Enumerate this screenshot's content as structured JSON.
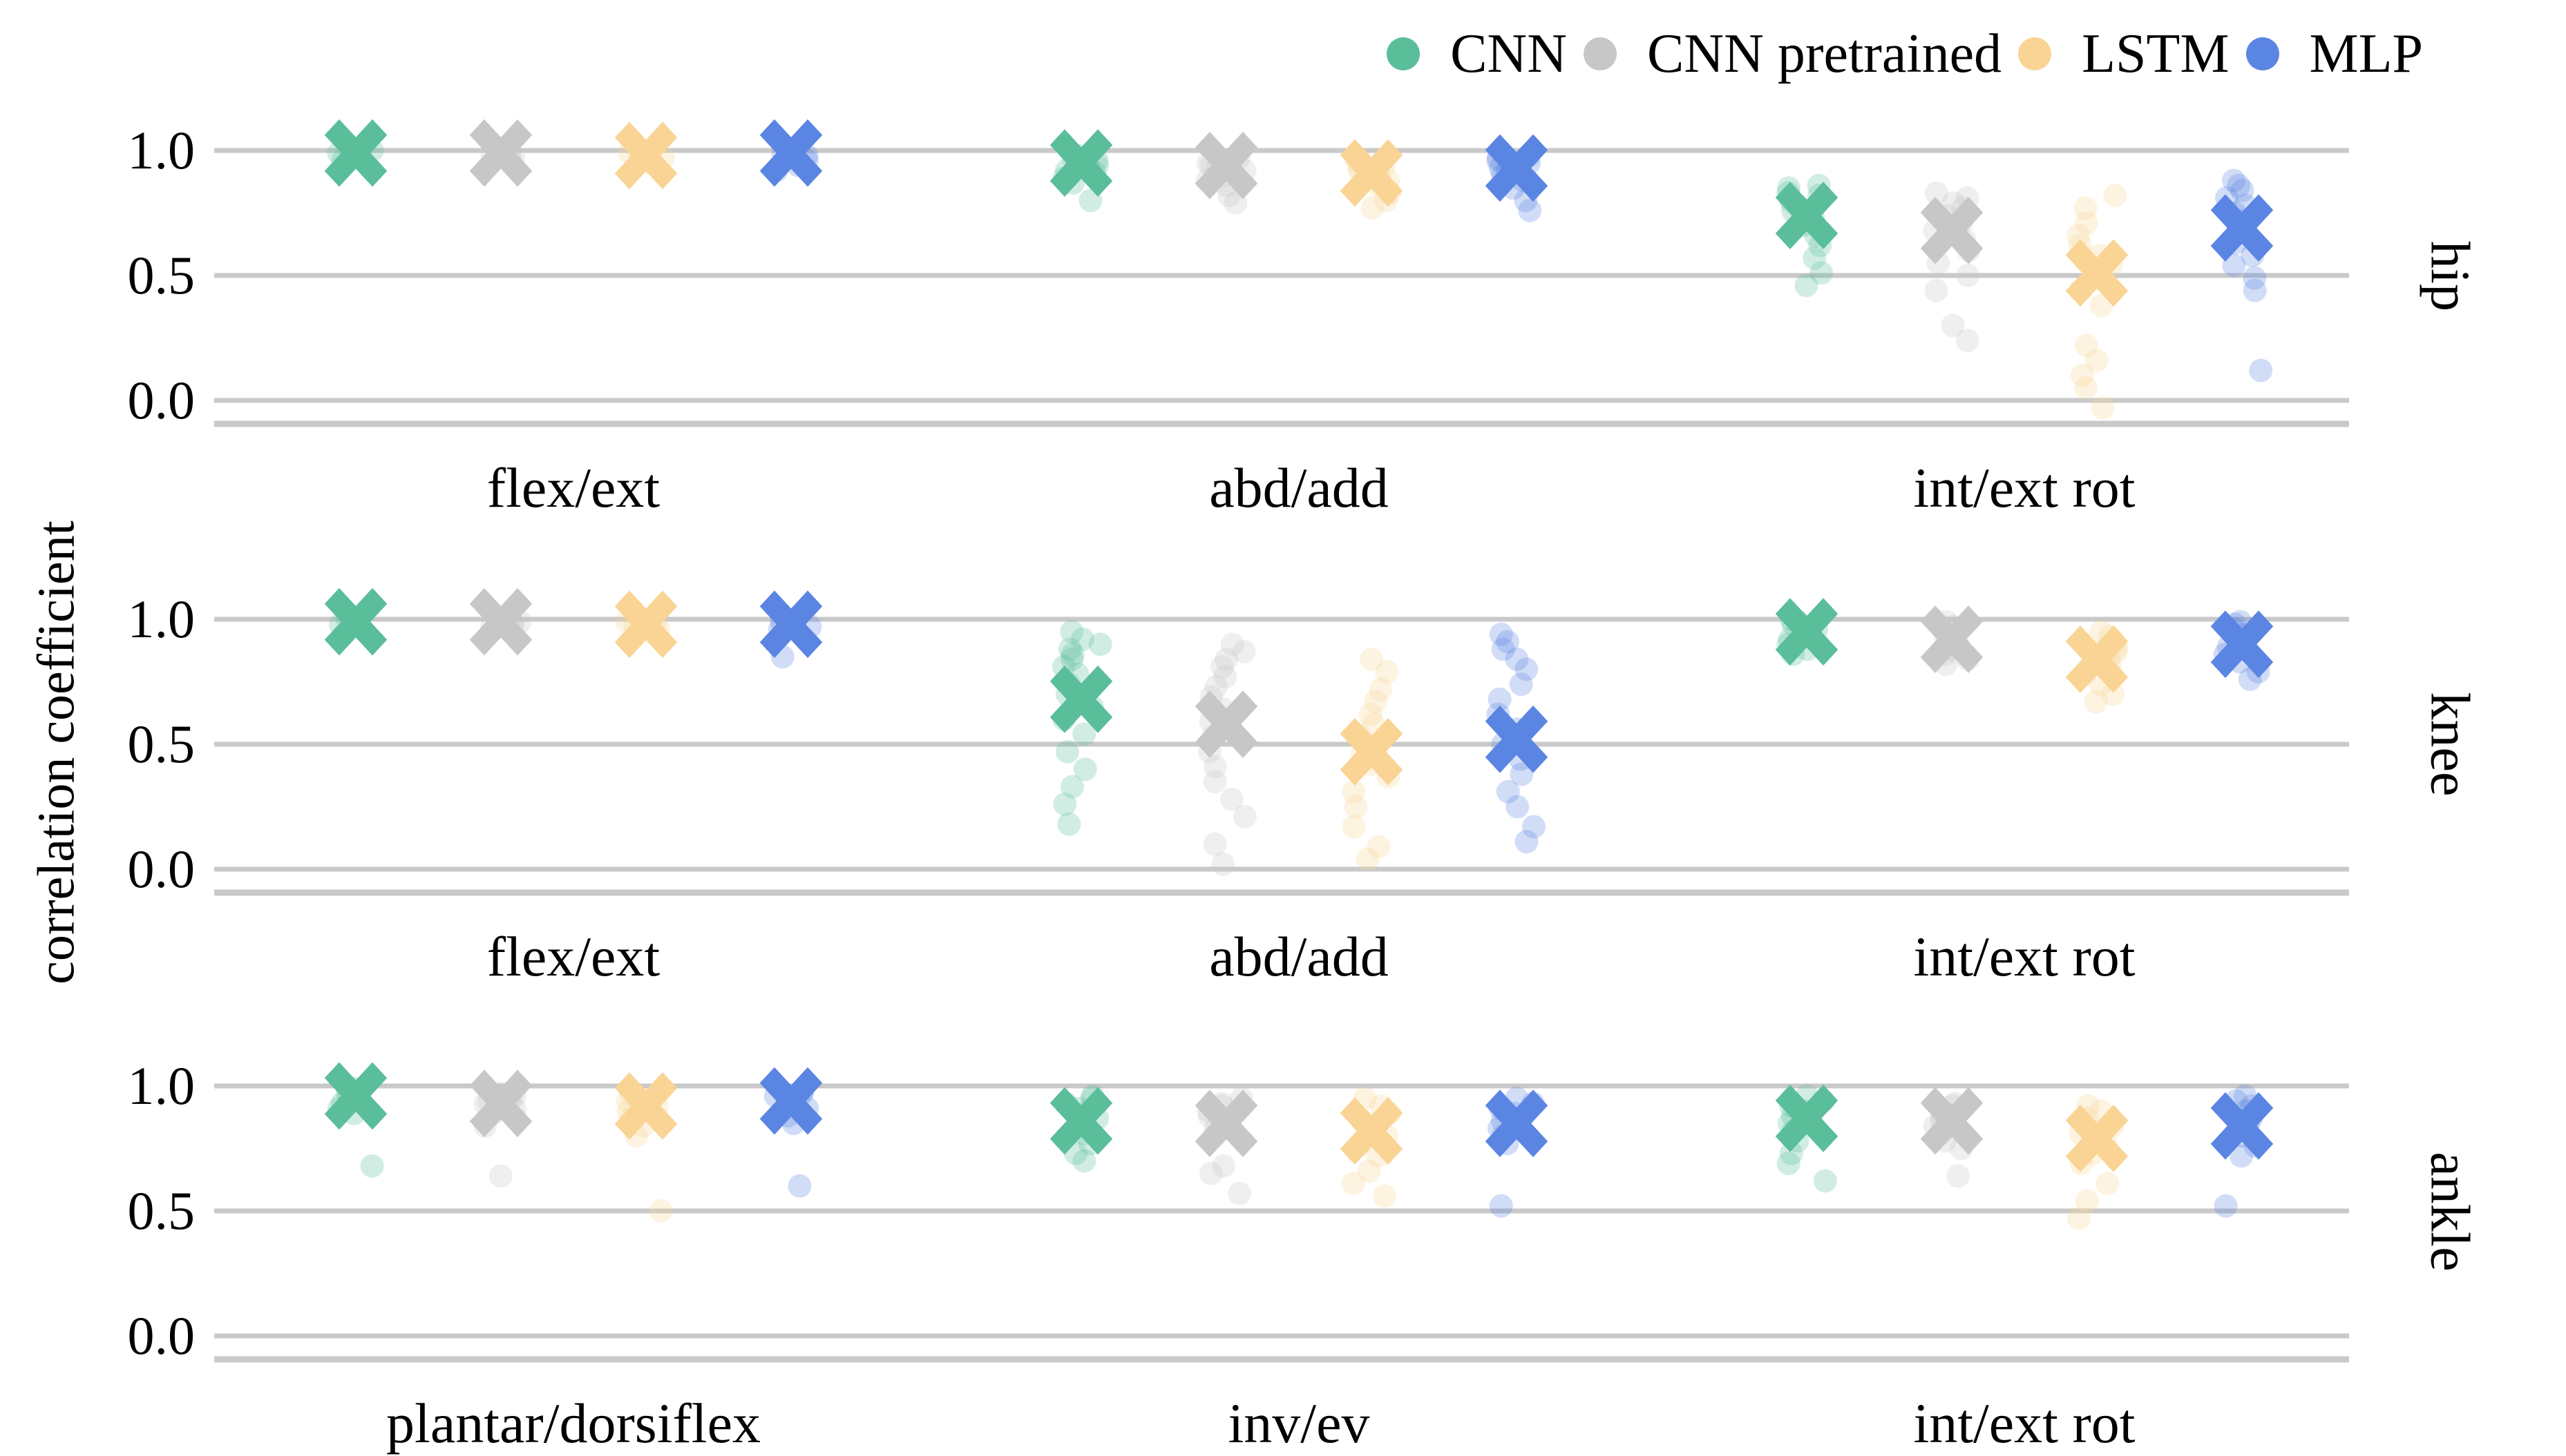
{
  "figure": {
    "background": "#ffffff",
    "grid_color": "#c9c9c9",
    "text_color": "#000000"
  },
  "chart_data": {
    "type": "scatter",
    "title": "",
    "xlabel": "",
    "ylabel": "correlation coefficient",
    "ytick_labels": [
      "1.0",
      "0.5",
      "0.0"
    ],
    "yticks": [
      1.0,
      0.5,
      0.0
    ],
    "ylim": [
      -0.1,
      1.2
    ],
    "grid": true,
    "legend_position": "top-right",
    "marker_mean": "X",
    "marker_point": "circle",
    "series": [
      {
        "name": "CNN",
        "color": "#5abe9a"
      },
      {
        "name": "CNN pretrained",
        "color": "#c7c7c7"
      },
      {
        "name": "LSTM",
        "color": "#f9d494"
      },
      {
        "name": "MLP",
        "color": "#5b85e3"
      }
    ],
    "panels": [
      {
        "row_label": "hip",
        "categories": [
          "flex/ext",
          "abd/add",
          "int/ext rot"
        ],
        "groups": [
          {
            "category": "flex/ext",
            "series": [
              {
                "name": "CNN",
                "mean": 0.99,
                "points": [
                  1.0,
                  0.99,
                  0.99,
                  0.98,
                  0.98,
                  0.97,
                  0.96
                ]
              },
              {
                "name": "CNN pretrained",
                "mean": 0.99,
                "points": [
                  1.0,
                  0.99,
                  0.98,
                  0.98,
                  0.97,
                  0.96
                ]
              },
              {
                "name": "LSTM",
                "mean": 0.98,
                "points": [
                  0.99,
                  0.98,
                  0.98,
                  0.97,
                  0.96,
                  0.95
                ]
              },
              {
                "name": "MLP",
                "mean": 0.99,
                "points": [
                  1.0,
                  0.99,
                  0.98,
                  0.97,
                  0.96,
                  0.94,
                  0.92
                ]
              }
            ]
          },
          {
            "category": "abd/add",
            "series": [
              {
                "name": "CNN",
                "mean": 0.95,
                "points": [
                  0.98,
                  0.97,
                  0.96,
                  0.95,
                  0.94,
                  0.93,
                  0.92,
                  0.91,
                  0.89,
                  0.87,
                  0.8
                ]
              },
              {
                "name": "CNN pretrained",
                "mean": 0.94,
                "points": [
                  0.97,
                  0.96,
                  0.95,
                  0.94,
                  0.93,
                  0.92,
                  0.9,
                  0.88,
                  0.86,
                  0.82,
                  0.79
                ]
              },
              {
                "name": "LSTM",
                "mean": 0.91,
                "points": [
                  0.97,
                  0.96,
                  0.94,
                  0.93,
                  0.92,
                  0.9,
                  0.88,
                  0.86,
                  0.83,
                  0.8,
                  0.77
                ]
              },
              {
                "name": "MLP",
                "mean": 0.93,
                "points": [
                  0.98,
                  0.97,
                  0.96,
                  0.95,
                  0.93,
                  0.92,
                  0.9,
                  0.88,
                  0.85,
                  0.8,
                  0.76
                ]
              }
            ]
          },
          {
            "category": "int/ext rot",
            "series": [
              {
                "name": "CNN",
                "mean": 0.74,
                "points": [
                  0.86,
                  0.85,
                  0.83,
                  0.82,
                  0.8,
                  0.78,
                  0.76,
                  0.73,
                  0.7,
                  0.66,
                  0.62,
                  0.57,
                  0.51,
                  0.46
                ]
              },
              {
                "name": "CNN pretrained",
                "mean": 0.68,
                "points": [
                  0.83,
                  0.81,
                  0.79,
                  0.77,
                  0.74,
                  0.71,
                  0.68,
                  0.64,
                  0.6,
                  0.55,
                  0.5,
                  0.44,
                  0.3,
                  0.24
                ]
              },
              {
                "name": "LSTM",
                "mean": 0.51,
                "points": [
                  0.82,
                  0.77,
                  0.71,
                  0.66,
                  0.62,
                  0.58,
                  0.54,
                  0.49,
                  0.44,
                  0.38,
                  0.22,
                  0.16,
                  0.1,
                  0.05,
                  -0.03
                ]
              },
              {
                "name": "MLP",
                "mean": 0.69,
                "points": [
                  0.88,
                  0.86,
                  0.84,
                  0.81,
                  0.78,
                  0.75,
                  0.72,
                  0.68,
                  0.63,
                  0.58,
                  0.54,
                  0.49,
                  0.44,
                  0.12
                ]
              }
            ]
          }
        ]
      },
      {
        "row_label": "knee",
        "categories": [
          "flex/ext",
          "abd/add",
          "int/ext rot"
        ],
        "groups": [
          {
            "category": "flex/ext",
            "series": [
              {
                "name": "CNN",
                "mean": 0.99,
                "points": [
                  1.0,
                  0.99,
                  0.99,
                  0.98,
                  0.97
                ]
              },
              {
                "name": "CNN pretrained",
                "mean": 0.99,
                "points": [
                  0.99,
                  0.99,
                  0.98,
                  0.97
                ]
              },
              {
                "name": "LSTM",
                "mean": 0.98,
                "points": [
                  0.99,
                  0.98,
                  0.97,
                  0.96
                ]
              },
              {
                "name": "MLP",
                "mean": 0.98,
                "points": [
                  0.99,
                  0.98,
                  0.97,
                  0.96,
                  0.85
                ]
              }
            ]
          },
          {
            "category": "abd/add",
            "series": [
              {
                "name": "CNN",
                "mean": 0.68,
                "points": [
                  0.95,
                  0.92,
                  0.9,
                  0.88,
                  0.86,
                  0.84,
                  0.81,
                  0.78,
                  0.74,
                  0.7,
                  0.65,
                  0.6,
                  0.54,
                  0.47,
                  0.4,
                  0.33,
                  0.26,
                  0.18
                ]
              },
              {
                "name": "CNN pretrained",
                "mean": 0.58,
                "points": [
                  0.9,
                  0.87,
                  0.84,
                  0.81,
                  0.77,
                  0.73,
                  0.69,
                  0.64,
                  0.59,
                  0.53,
                  0.47,
                  0.41,
                  0.35,
                  0.28,
                  0.21,
                  0.1,
                  0.02
                ]
              },
              {
                "name": "LSTM",
                "mean": 0.47,
                "points": [
                  0.84,
                  0.79,
                  0.72,
                  0.67,
                  0.62,
                  0.58,
                  0.54,
                  0.5,
                  0.46,
                  0.42,
                  0.37,
                  0.31,
                  0.25,
                  0.17,
                  0.09,
                  0.04
                ]
              },
              {
                "name": "MLP",
                "mean": 0.52,
                "points": [
                  0.94,
                  0.91,
                  0.88,
                  0.84,
                  0.8,
                  0.74,
                  0.68,
                  0.62,
                  0.56,
                  0.5,
                  0.44,
                  0.38,
                  0.31,
                  0.25,
                  0.17,
                  0.11
                ]
              }
            ]
          },
          {
            "category": "int/ext rot",
            "series": [
              {
                "name": "CNN",
                "mean": 0.95,
                "points": [
                  1.0,
                  0.99,
                  0.98,
                  0.97,
                  0.96,
                  0.94,
                  0.92,
                  0.9,
                  0.88,
                  0.86
                ]
              },
              {
                "name": "CNN pretrained",
                "mean": 0.92,
                "points": [
                  0.99,
                  0.97,
                  0.96,
                  0.94,
                  0.92,
                  0.9,
                  0.88,
                  0.86,
                  0.84,
                  0.82
                ]
              },
              {
                "name": "LSTM",
                "mean": 0.84,
                "points": [
                  0.95,
                  0.93,
                  0.91,
                  0.89,
                  0.87,
                  0.84,
                  0.81,
                  0.78,
                  0.74,
                  0.7,
                  0.67
                ]
              },
              {
                "name": "MLP",
                "mean": 0.9,
                "points": [
                  0.99,
                  0.98,
                  0.96,
                  0.94,
                  0.92,
                  0.89,
                  0.86,
                  0.83,
                  0.79,
                  0.76
                ]
              }
            ]
          }
        ]
      },
      {
        "row_label": "ankle",
        "categories": [
          "plantar/dorsiflex",
          "inv/ev",
          "int/ext rot"
        ],
        "groups": [
          {
            "category": "plantar/dorsiflex",
            "series": [
              {
                "name": "CNN",
                "mean": 0.96,
                "points": [
                  0.99,
                  0.98,
                  0.97,
                  0.96,
                  0.95,
                  0.93,
                  0.91,
                  0.89,
                  0.68
                ]
              },
              {
                "name": "CNN pretrained",
                "mean": 0.93,
                "points": [
                  0.97,
                  0.96,
                  0.95,
                  0.94,
                  0.93,
                  0.91,
                  0.89,
                  0.87,
                  0.84,
                  0.64
                ]
              },
              {
                "name": "LSTM",
                "mean": 0.92,
                "points": [
                  0.97,
                  0.95,
                  0.94,
                  0.92,
                  0.9,
                  0.87,
                  0.84,
                  0.8,
                  0.5
                ]
              },
              {
                "name": "MLP",
                "mean": 0.94,
                "points": [
                  0.98,
                  0.97,
                  0.96,
                  0.95,
                  0.93,
                  0.91,
                  0.88,
                  0.85,
                  0.6
                ]
              }
            ]
          },
          {
            "category": "inv/ev",
            "series": [
              {
                "name": "CNN",
                "mean": 0.86,
                "points": [
                  0.96,
                  0.95,
                  0.93,
                  0.91,
                  0.89,
                  0.87,
                  0.84,
                  0.81,
                  0.77,
                  0.73,
                  0.7
                ]
              },
              {
                "name": "CNN pretrained",
                "mean": 0.85,
                "points": [
                  0.95,
                  0.93,
                  0.92,
                  0.9,
                  0.88,
                  0.86,
                  0.83,
                  0.8,
                  0.68,
                  0.65,
                  0.57
                ]
              },
              {
                "name": "LSTM",
                "mean": 0.82,
                "points": [
                  0.95,
                  0.92,
                  0.89,
                  0.86,
                  0.83,
                  0.8,
                  0.76,
                  0.72,
                  0.66,
                  0.61,
                  0.56
                ]
              },
              {
                "name": "MLP",
                "mean": 0.85,
                "points": [
                  0.95,
                  0.93,
                  0.91,
                  0.89,
                  0.86,
                  0.83,
                  0.8,
                  0.77,
                  0.52
                ]
              }
            ]
          },
          {
            "category": "int/ext rot",
            "series": [
              {
                "name": "CNN",
                "mean": 0.87,
                "points": [
                  0.96,
                  0.94,
                  0.92,
                  0.9,
                  0.88,
                  0.85,
                  0.82,
                  0.78,
                  0.73,
                  0.69,
                  0.62
                ]
              },
              {
                "name": "CNN pretrained",
                "mean": 0.86,
                "points": [
                  0.93,
                  0.92,
                  0.9,
                  0.88,
                  0.86,
                  0.84,
                  0.81,
                  0.78,
                  0.75,
                  0.64
                ]
              },
              {
                "name": "LSTM",
                "mean": 0.79,
                "points": [
                  0.92,
                  0.9,
                  0.87,
                  0.84,
                  0.81,
                  0.77,
                  0.73,
                  0.69,
                  0.61,
                  0.54,
                  0.47
                ]
              },
              {
                "name": "MLP",
                "mean": 0.84,
                "points": [
                  0.96,
                  0.94,
                  0.92,
                  0.9,
                  0.87,
                  0.84,
                  0.8,
                  0.76,
                  0.72,
                  0.52
                ]
              }
            ]
          }
        ]
      }
    ]
  }
}
